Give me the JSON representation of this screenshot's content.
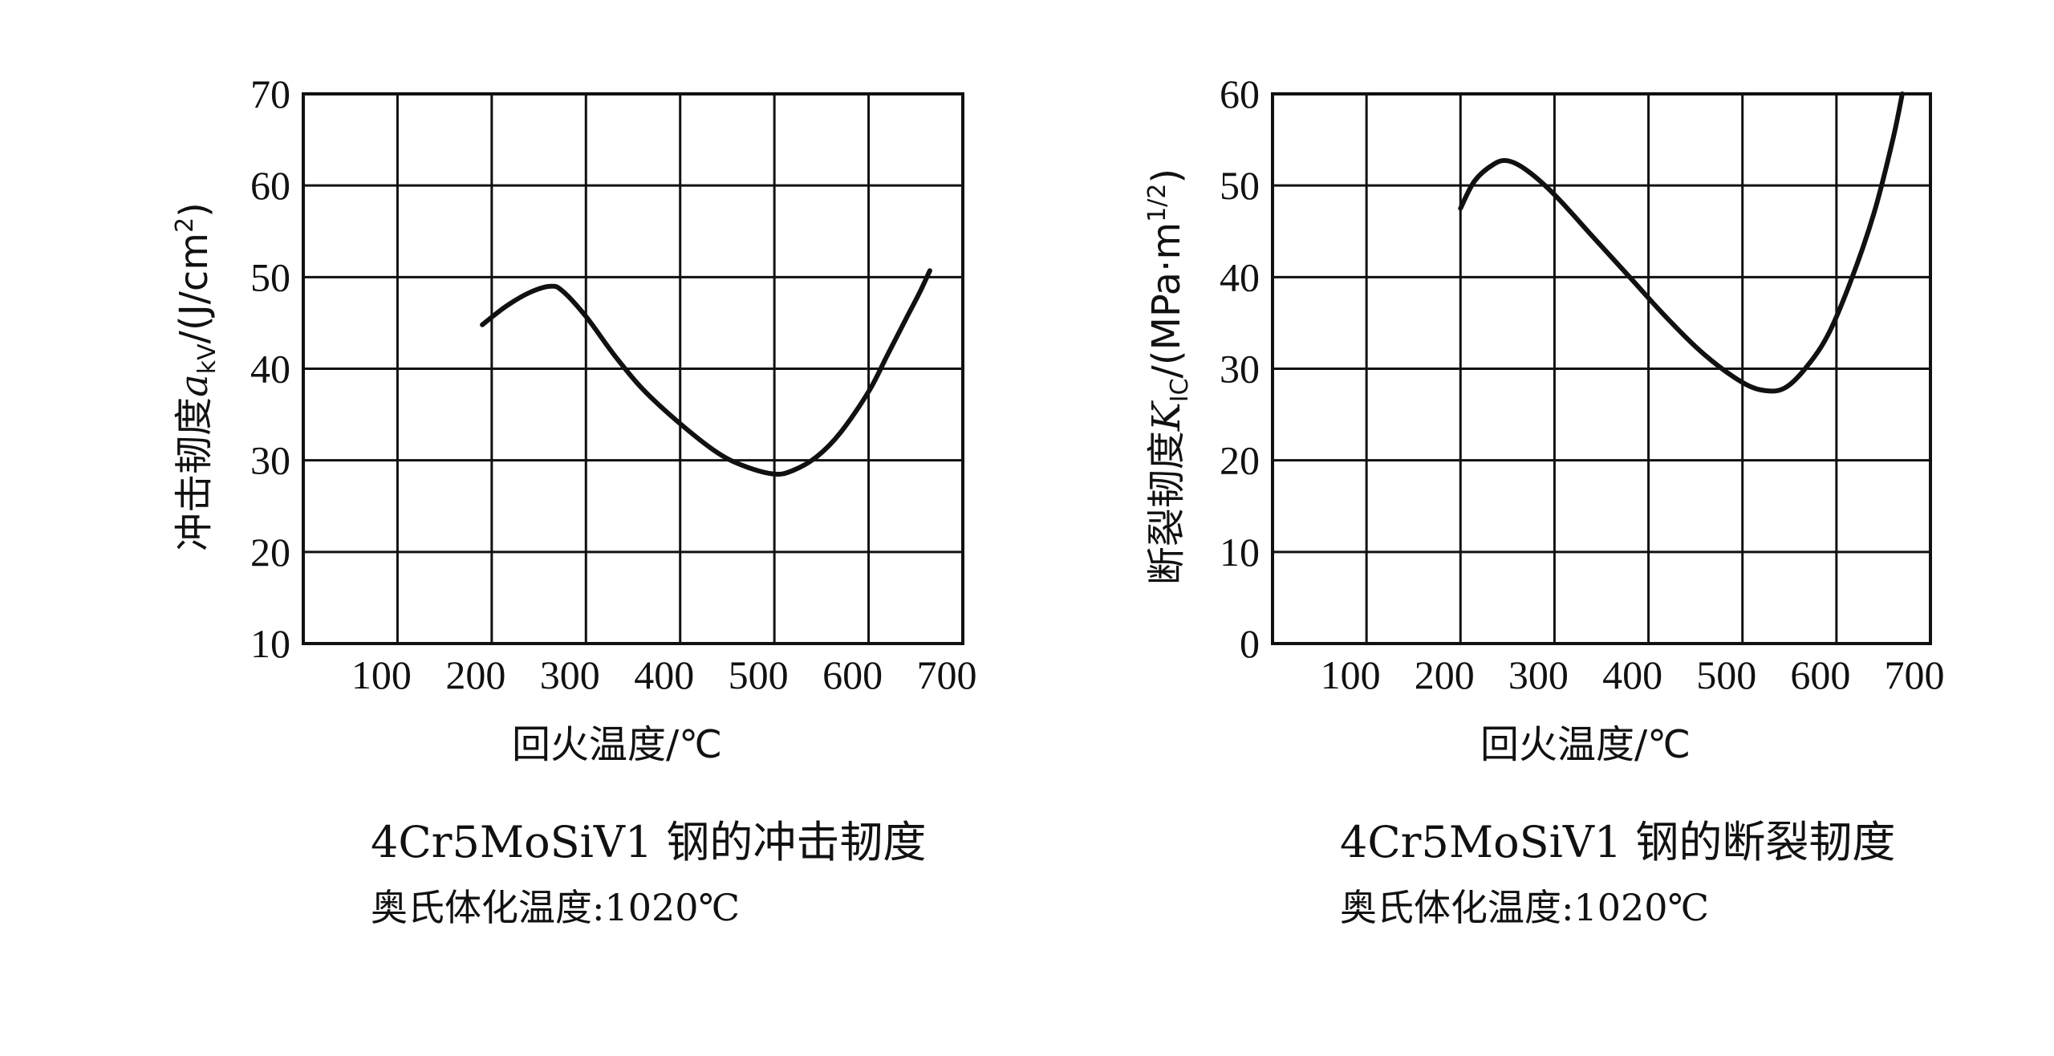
{
  "chart_data": [
    {
      "type": "line",
      "title": "4Cr5MoSiV1 钢的冲击韧度",
      "subtitle": "奥氏体化温度:1020℃",
      "xlabel": "回火温度/℃",
      "ylabel": "冲击韧度a_kV/(J/cm²)",
      "ylabel_main": "冲击韧度",
      "ylabel_sym": "a",
      "ylabel_sub": "kV",
      "ylabel_unit": "/(J/cm",
      "ylabel_sup": "2",
      "ylabel_close": ")",
      "xlim": [
        0,
        700
      ],
      "ylim": [
        10,
        70
      ],
      "x_ticks": [
        100,
        200,
        300,
        400,
        500,
        600,
        700
      ],
      "x_tick_labels": [
        "100",
        "200",
        "300",
        "400",
        "500",
        "600",
        "700"
      ],
      "y_ticks": [
        10,
        20,
        30,
        40,
        50,
        60,
        70
      ],
      "y_tick_labels": [
        "10",
        "20",
        "30",
        "40",
        "50",
        "60",
        "70"
      ],
      "grid": true,
      "series": [
        {
          "x": [
            190,
            215,
            240,
            262,
            275,
            300,
            330,
            360,
            400,
            440,
            470,
            500,
            520,
            545,
            570,
            600,
            620,
            640,
            655,
            665
          ],
          "y": [
            44.8,
            46.8,
            48.3,
            49.0,
            48.5,
            45.7,
            41.5,
            37.8,
            34.0,
            30.8,
            29.3,
            28.5,
            28.9,
            30.4,
            33.0,
            37.5,
            41.5,
            45.5,
            48.5,
            50.7
          ]
        }
      ]
    },
    {
      "type": "line",
      "title": "4Cr5MoSiV1 钢的断裂韧度",
      "subtitle": "奥氏体化温度:1020℃",
      "xlabel": "回火温度/℃",
      "ylabel": "断裂韧度K_IC/(MPa·m^1/2)",
      "ylabel_main": "断裂韧度",
      "ylabel_sym": "K",
      "ylabel_sub": "IC",
      "ylabel_unit": "/(MPa·m",
      "ylabel_sup": "1/2",
      "ylabel_close": ")",
      "xlim": [
        0,
        700
      ],
      "ylim": [
        0,
        60
      ],
      "x_ticks": [
        100,
        200,
        300,
        400,
        500,
        600,
        700
      ],
      "x_tick_labels": [
        "100",
        "200",
        "300",
        "400",
        "500",
        "600",
        "700"
      ],
      "y_ticks": [
        0,
        10,
        20,
        30,
        40,
        50,
        60
      ],
      "y_tick_labels": [
        "0",
        "10",
        "20",
        "30",
        "40",
        "50",
        "60"
      ],
      "grid": true,
      "series": [
        {
          "x": [
            200,
            215,
            235,
            250,
            270,
            300,
            340,
            380,
            420,
            460,
            500,
            525,
            545,
            565,
            590,
            615,
            640,
            660,
            670
          ],
          "y": [
            47.5,
            50.5,
            52.3,
            52.7,
            51.7,
            49.0,
            44.5,
            40.0,
            35.5,
            31.5,
            28.5,
            27.6,
            27.9,
            29.8,
            33.5,
            39.5,
            47.0,
            55.0,
            60.0
          ]
        }
      ]
    }
  ]
}
